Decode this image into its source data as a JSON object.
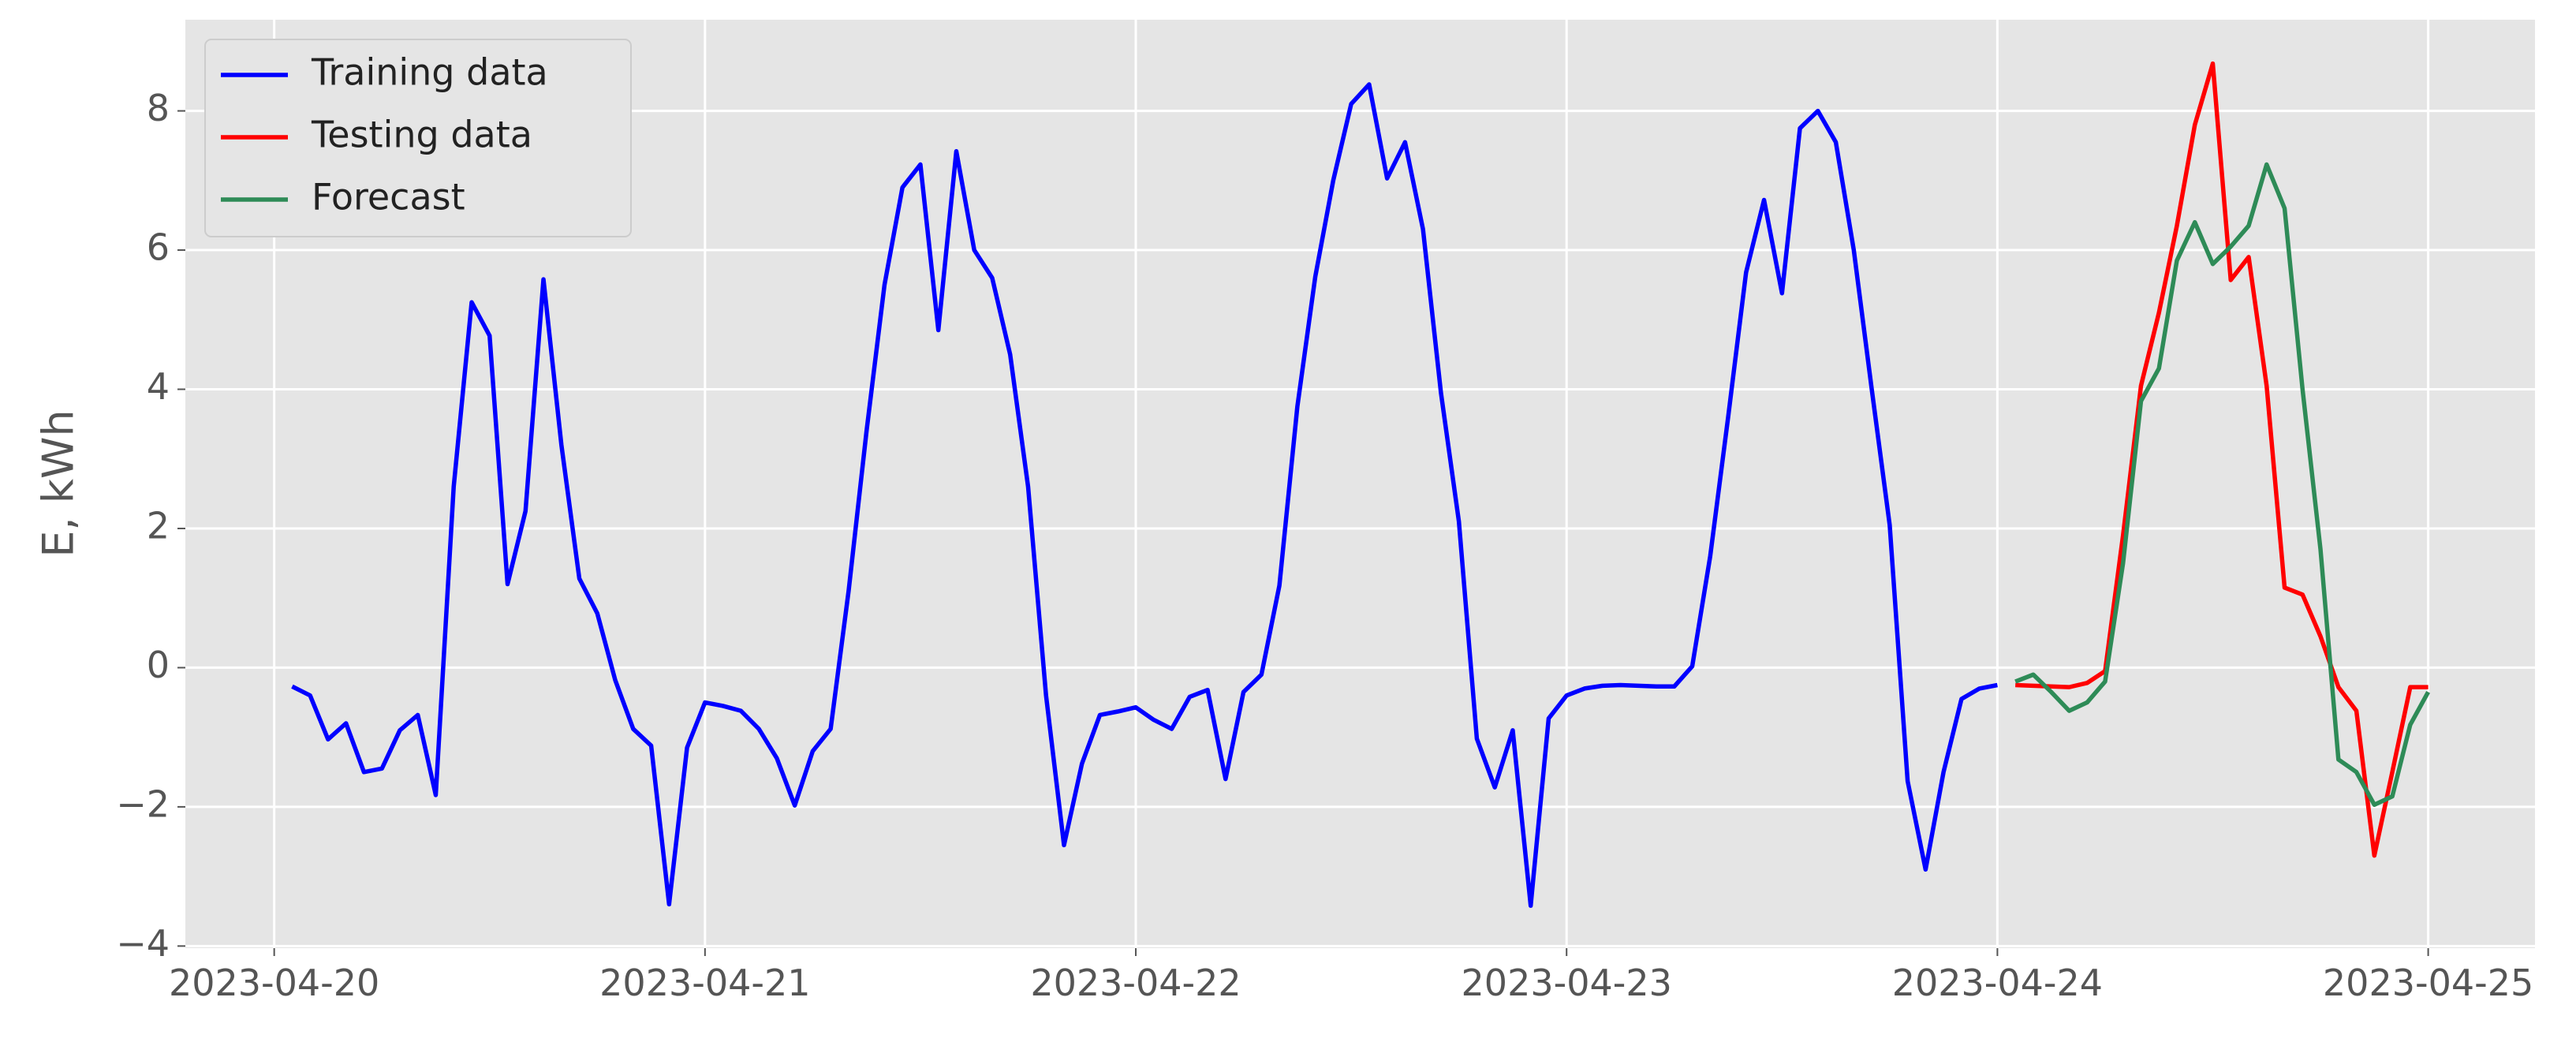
{
  "chart_data": {
    "type": "line",
    "ylabel": "E, kWh",
    "x": [
      "2023-04-20T01:00",
      "2023-04-20T02:00",
      "2023-04-20T03:00",
      "2023-04-20T04:00",
      "2023-04-20T05:00",
      "2023-04-20T06:00",
      "2023-04-20T07:00",
      "2023-04-20T08:00",
      "2023-04-20T09:00",
      "2023-04-20T10:00",
      "2023-04-20T11:00",
      "2023-04-20T12:00",
      "2023-04-20T13:00",
      "2023-04-20T14:00",
      "2023-04-20T15:00",
      "2023-04-20T16:00",
      "2023-04-20T17:00",
      "2023-04-20T18:00",
      "2023-04-20T19:00",
      "2023-04-20T20:00",
      "2023-04-20T21:00",
      "2023-04-20T22:00",
      "2023-04-20T23:00",
      "2023-04-21T00:00",
      "2023-04-21T01:00",
      "2023-04-21T02:00",
      "2023-04-21T03:00",
      "2023-04-21T04:00",
      "2023-04-21T05:00",
      "2023-04-21T06:00",
      "2023-04-21T07:00",
      "2023-04-21T08:00",
      "2023-04-21T09:00",
      "2023-04-21T10:00",
      "2023-04-21T11:00",
      "2023-04-21T12:00",
      "2023-04-21T13:00",
      "2023-04-21T14:00",
      "2023-04-21T15:00",
      "2023-04-21T16:00",
      "2023-04-21T17:00",
      "2023-04-21T18:00",
      "2023-04-21T19:00",
      "2023-04-21T20:00",
      "2023-04-21T21:00",
      "2023-04-21T22:00",
      "2023-04-21T23:00",
      "2023-04-22T00:00",
      "2023-04-22T01:00",
      "2023-04-22T02:00",
      "2023-04-22T03:00",
      "2023-04-22T04:00",
      "2023-04-22T05:00",
      "2023-04-22T06:00",
      "2023-04-22T07:00",
      "2023-04-22T08:00",
      "2023-04-22T09:00",
      "2023-04-22T10:00",
      "2023-04-22T11:00",
      "2023-04-22T12:00",
      "2023-04-22T13:00",
      "2023-04-22T14:00",
      "2023-04-22T15:00",
      "2023-04-22T16:00",
      "2023-04-22T17:00",
      "2023-04-22T18:00",
      "2023-04-22T19:00",
      "2023-04-22T20:00",
      "2023-04-22T21:00",
      "2023-04-22T22:00",
      "2023-04-22T23:00",
      "2023-04-23T00:00",
      "2023-04-23T01:00",
      "2023-04-23T02:00",
      "2023-04-23T03:00",
      "2023-04-23T04:00",
      "2023-04-23T05:00",
      "2023-04-23T06:00",
      "2023-04-23T07:00",
      "2023-04-23T08:00",
      "2023-04-23T09:00",
      "2023-04-23T10:00",
      "2023-04-23T11:00",
      "2023-04-23T12:00",
      "2023-04-23T13:00",
      "2023-04-23T14:00",
      "2023-04-23T15:00",
      "2023-04-23T16:00",
      "2023-04-23T17:00",
      "2023-04-23T18:00",
      "2023-04-23T19:00",
      "2023-04-23T20:00",
      "2023-04-23T21:00",
      "2023-04-23T22:00",
      "2023-04-23T23:00",
      "2023-04-24T00:00",
      "2023-04-24T01:00",
      "2023-04-24T02:00",
      "2023-04-24T03:00",
      "2023-04-24T04:00",
      "2023-04-24T05:00",
      "2023-04-24T06:00",
      "2023-04-24T07:00",
      "2023-04-24T08:00",
      "2023-04-24T09:00",
      "2023-04-24T10:00",
      "2023-04-24T11:00",
      "2023-04-24T12:00",
      "2023-04-24T13:00",
      "2023-04-24T14:00",
      "2023-04-24T15:00",
      "2023-04-24T16:00",
      "2023-04-24T17:00",
      "2023-04-24T18:00",
      "2023-04-24T19:00",
      "2023-04-24T20:00",
      "2023-04-24T21:00",
      "2023-04-24T22:00",
      "2023-04-24T23:00",
      "2023-04-25T00:00"
    ],
    "series": [
      {
        "name": "Training data",
        "color": "#0000ff",
        "values": [
          -0.27,
          -0.4,
          -1.03,
          -0.8,
          -1.5,
          -1.45,
          -0.9,
          -0.68,
          -1.83,
          2.6,
          5.25,
          4.77,
          1.2,
          2.25,
          5.58,
          3.2,
          1.28,
          0.78,
          -0.18,
          -0.88,
          -1.12,
          -3.4,
          -1.15,
          -0.5,
          -0.55,
          -0.62,
          -0.88,
          -1.3,
          -1.98,
          -1.2,
          -0.88,
          1.1,
          3.4,
          5.5,
          6.9,
          7.23,
          4.85,
          7.42,
          6.0,
          5.6,
          4.5,
          2.6,
          -0.4,
          -2.55,
          -1.38,
          -0.68,
          -0.63,
          -0.57,
          -0.75,
          -0.88,
          -0.42,
          -0.32,
          -1.6,
          -0.35,
          -0.1,
          1.18,
          3.75,
          5.62,
          7.0,
          8.1,
          8.38,
          7.03,
          7.55,
          6.3,
          3.95,
          2.1,
          -1.02,
          -1.72,
          -0.9,
          -3.42,
          -0.73,
          -0.4,
          -0.3,
          -0.26,
          -0.25,
          -0.26,
          -0.27,
          -0.27,
          0.02,
          1.6,
          3.6,
          5.68,
          6.72,
          5.38,
          7.75,
          8.0,
          7.55,
          6.0,
          4.0,
          2.05,
          -1.63,
          -2.9,
          -1.5,
          -0.45,
          -0.3,
          -0.25,
          null,
          null,
          null,
          null,
          null,
          null,
          null,
          null,
          null,
          null,
          null,
          null,
          null,
          null,
          null,
          null,
          null,
          null,
          null,
          null,
          null,
          null,
          null,
          null
        ]
      },
      {
        "name": "Testing data",
        "color": "#ff0000",
        "values": [
          null,
          null,
          null,
          null,
          null,
          null,
          null,
          null,
          null,
          null,
          null,
          null,
          null,
          null,
          null,
          null,
          null,
          null,
          null,
          null,
          null,
          null,
          null,
          null,
          null,
          null,
          null,
          null,
          null,
          null,
          null,
          null,
          null,
          null,
          null,
          null,
          null,
          null,
          null,
          null,
          null,
          null,
          null,
          null,
          null,
          null,
          null,
          null,
          null,
          null,
          null,
          null,
          null,
          null,
          null,
          null,
          null,
          null,
          null,
          null,
          null,
          null,
          null,
          null,
          null,
          null,
          null,
          null,
          null,
          null,
          null,
          null,
          null,
          null,
          null,
          null,
          null,
          null,
          null,
          null,
          null,
          null,
          null,
          null,
          null,
          null,
          null,
          null,
          null,
          null,
          null,
          null,
          null,
          null,
          null,
          null,
          -0.25,
          -0.26,
          -0.27,
          -0.28,
          -0.22,
          -0.05,
          1.9,
          4.05,
          5.1,
          6.35,
          7.8,
          8.68,
          5.57,
          5.9,
          4.05,
          1.15,
          1.05,
          0.45,
          -0.28,
          -0.62,
          -2.7,
          -1.5,
          -0.28,
          -0.28
        ]
      },
      {
        "name": "Forecast",
        "color": "#2e8b57",
        "values": [
          null,
          null,
          null,
          null,
          null,
          null,
          null,
          null,
          null,
          null,
          null,
          null,
          null,
          null,
          null,
          null,
          null,
          null,
          null,
          null,
          null,
          null,
          null,
          null,
          null,
          null,
          null,
          null,
          null,
          null,
          null,
          null,
          null,
          null,
          null,
          null,
          null,
          null,
          null,
          null,
          null,
          null,
          null,
          null,
          null,
          null,
          null,
          null,
          null,
          null,
          null,
          null,
          null,
          null,
          null,
          null,
          null,
          null,
          null,
          null,
          null,
          null,
          null,
          null,
          null,
          null,
          null,
          null,
          null,
          null,
          null,
          null,
          null,
          null,
          null,
          null,
          null,
          null,
          null,
          null,
          null,
          null,
          null,
          null,
          null,
          null,
          null,
          null,
          null,
          null,
          null,
          null,
          null,
          null,
          null,
          null,
          -0.2,
          -0.1,
          -0.35,
          -0.62,
          -0.5,
          -0.2,
          1.5,
          3.83,
          4.3,
          5.85,
          6.4,
          5.8,
          6.05,
          6.35,
          7.23,
          6.6,
          4.0,
          1.7,
          -1.32,
          -1.5,
          -1.97,
          -1.85,
          -0.82,
          -0.35
        ]
      }
    ],
    "xlim": [
      "2023-04-19T19:03",
      "2023-04-25T05:57"
    ],
    "xticks": [
      "2023-04-20",
      "2023-04-21",
      "2023-04-22",
      "2023-04-23",
      "2023-04-24",
      "2023-04-25"
    ],
    "ylim": [
      -4.03,
      9.31
    ],
    "yticks": [
      {
        "value": -4,
        "label": "−4"
      },
      {
        "value": -2,
        "label": "−2"
      },
      0,
      2,
      4,
      6,
      8
    ],
    "grid": true,
    "legend": "upper left"
  }
}
